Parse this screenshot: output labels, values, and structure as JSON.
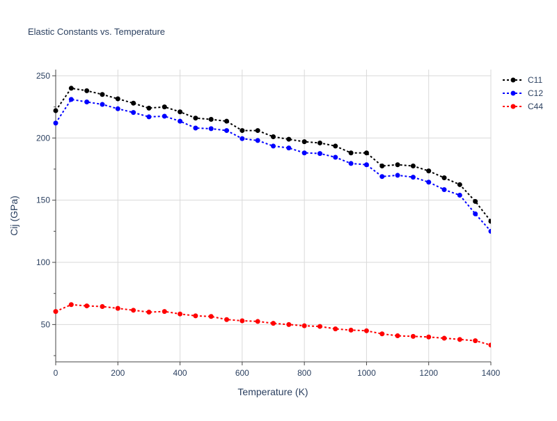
{
  "chart_data": {
    "type": "line",
    "title": "Elastic Constants vs. Temperature",
    "xlabel": "Temperature (K)",
    "ylabel": "Cij (GPa)",
    "xlim": [
      0,
      1400
    ],
    "ylim": [
      20,
      255
    ],
    "xticks": [
      0,
      200,
      400,
      600,
      800,
      1000,
      1200,
      1400
    ],
    "yticks": [
      50,
      100,
      150,
      200,
      250
    ],
    "grid": true,
    "legend_position": "top-right",
    "x": [
      0,
      50,
      100,
      150,
      200,
      250,
      300,
      350,
      400,
      450,
      500,
      550,
      600,
      650,
      700,
      750,
      800,
      850,
      900,
      950,
      1000,
      1050,
      1100,
      1150,
      1200,
      1250,
      1300,
      1350,
      1400
    ],
    "series": [
      {
        "name": "C11",
        "color": "#000000",
        "values": [
          222,
          240,
          238,
          235,
          231.5,
          228,
          224,
          225,
          221,
          216,
          215,
          213.5,
          206,
          206,
          201,
          199,
          197,
          196,
          193.5,
          188,
          188,
          177.5,
          178.5,
          177.5,
          173.5,
          168,
          162.5,
          149,
          133
        ]
      },
      {
        "name": "C12",
        "color": "#0000ff",
        "values": [
          212,
          231,
          229,
          227,
          223.5,
          220.5,
          217,
          217.5,
          213.5,
          208,
          207.5,
          206,
          199.5,
          198,
          193.5,
          192,
          188,
          187.5,
          184.5,
          179.5,
          178.5,
          169,
          170,
          168.5,
          164.5,
          158.5,
          154,
          139,
          125
        ]
      },
      {
        "name": "C44",
        "color": "#ff0000",
        "values": [
          60.5,
          66,
          65,
          64.5,
          63,
          61.5,
          60,
          60.5,
          58.5,
          57,
          56.5,
          54,
          53,
          52.5,
          51,
          50,
          49,
          48.5,
          46.5,
          45.5,
          45,
          42.5,
          41,
          40.5,
          40,
          39,
          38,
          37,
          33.5
        ]
      }
    ]
  }
}
